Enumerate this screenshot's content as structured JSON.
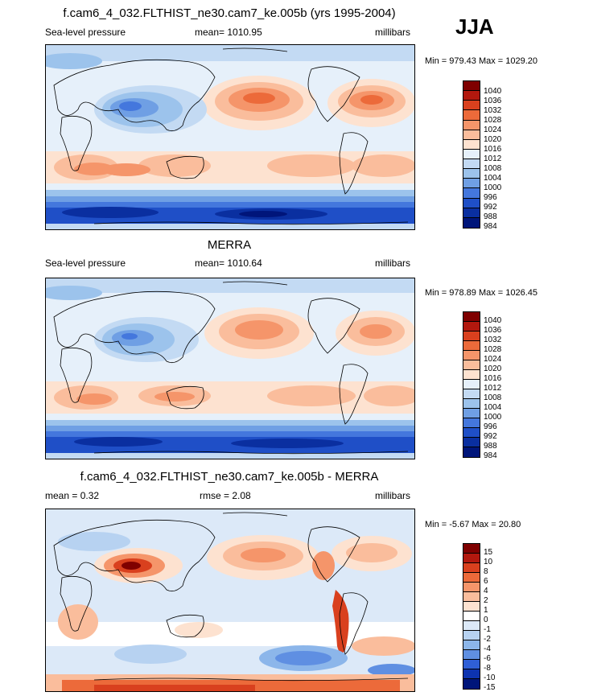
{
  "season": "JJA",
  "panels": [
    {
      "title": "f.cam6_4_032.FLTHIST_ne30.cam7_ke.005b (yrs 1995-2004)",
      "left_label": "Sea-level pressure",
      "center_label": "mean= 1010.95",
      "right_label": "millibars",
      "minmax": "Min = 979.43 Max = 1029.20",
      "colorbar": {
        "colors": [
          "#7f0000",
          "#b2180e",
          "#d9401e",
          "#ec6a3a",
          "#f5956a",
          "#fabd9c",
          "#fde2d0",
          "#e6f0fa",
          "#c3daf3",
          "#9cc3ec",
          "#6f9fe4",
          "#4477dd",
          "#1f4fc7",
          "#0a2fa0",
          "#00157a"
        ],
        "labels": [
          "1040",
          "1036",
          "1032",
          "1028",
          "1024",
          "1020",
          "1016",
          "1012",
          "1008",
          "1004",
          "1000",
          "996",
          "992",
          "988",
          "984"
        ]
      }
    },
    {
      "title": "MERRA",
      "left_label": "Sea-level pressure",
      "center_label": "mean= 1010.64",
      "right_label": "millibars",
      "minmax": "Min = 978.89 Max = 1026.45",
      "colorbar": {
        "colors": [
          "#7f0000",
          "#b2180e",
          "#d9401e",
          "#ec6a3a",
          "#f5956a",
          "#fabd9c",
          "#fde2d0",
          "#e6f0fa",
          "#c3daf3",
          "#9cc3ec",
          "#6f9fe4",
          "#4477dd",
          "#1f4fc7",
          "#0a2fa0",
          "#00157a"
        ],
        "labels": [
          "1040",
          "1036",
          "1032",
          "1028",
          "1024",
          "1020",
          "1016",
          "1012",
          "1008",
          "1004",
          "1000",
          "996",
          "992",
          "988",
          "984"
        ]
      }
    },
    {
      "title": "f.cam6_4_032.FLTHIST_ne30.cam7_ke.005b - MERRA",
      "left_label": "mean =   0.32",
      "center_label": "rmse =   2.08",
      "right_label": "millibars",
      "minmax": "Min =  -5.67 Max =  20.80",
      "colorbar": {
        "colors": [
          "#7f0000",
          "#b2180e",
          "#d9401e",
          "#ec6a3a",
          "#f5956a",
          "#fabd9c",
          "#fde2d0",
          "#ffffff",
          "#dce9f8",
          "#b7d2f1",
          "#8cb6ea",
          "#5f8fe2",
          "#2f5fd6",
          "#0d33b0",
          "#00157a"
        ],
        "labels": [
          "15",
          "10",
          "8",
          "6",
          "4",
          "2",
          "1",
          "0",
          "-1",
          "-2",
          "-4",
          "-6",
          "-8",
          "-10",
          "-15"
        ]
      }
    }
  ]
}
